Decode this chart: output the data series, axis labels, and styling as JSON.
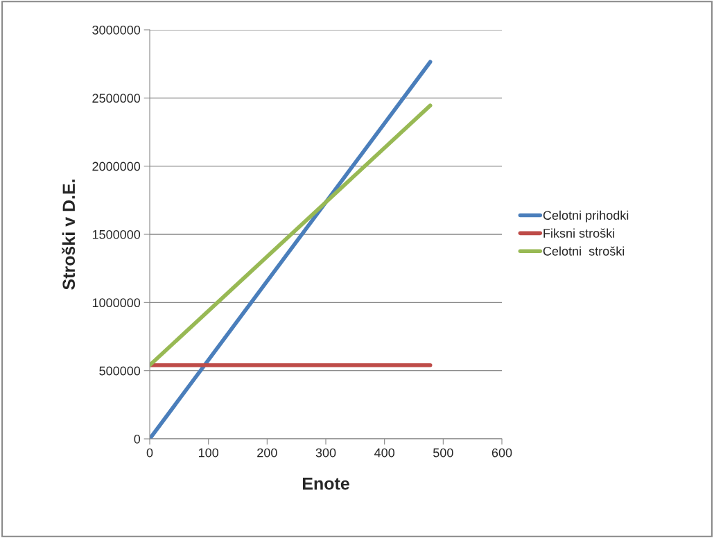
{
  "chart_data": {
    "type": "line",
    "xlabel": "Enote",
    "ylabel": "Stroški v D.E.",
    "x": [
      0,
      478
    ],
    "xlim": [
      0,
      600
    ],
    "xticks": [
      0,
      100,
      200,
      300,
      400,
      500,
      600
    ],
    "ylim": [
      0,
      3000000
    ],
    "yticks": [
      0,
      500000,
      1000000,
      1500000,
      2000000,
      2500000,
      3000000
    ],
    "grid": "y",
    "legend": "right",
    "marker": "none",
    "line_style": "solid",
    "series": [
      {
        "name": "Celotni prihodki",
        "color": "#4a7ebb",
        "values": [
          0,
          2765000
        ]
      },
      {
        "name": "Fiksni stroški",
        "color": "#be4b48",
        "values": [
          540000,
          540000
        ]
      },
      {
        "name": "Celotni  stroški",
        "color": "#98b954",
        "values": [
          540000,
          2445000
        ]
      }
    ]
  }
}
